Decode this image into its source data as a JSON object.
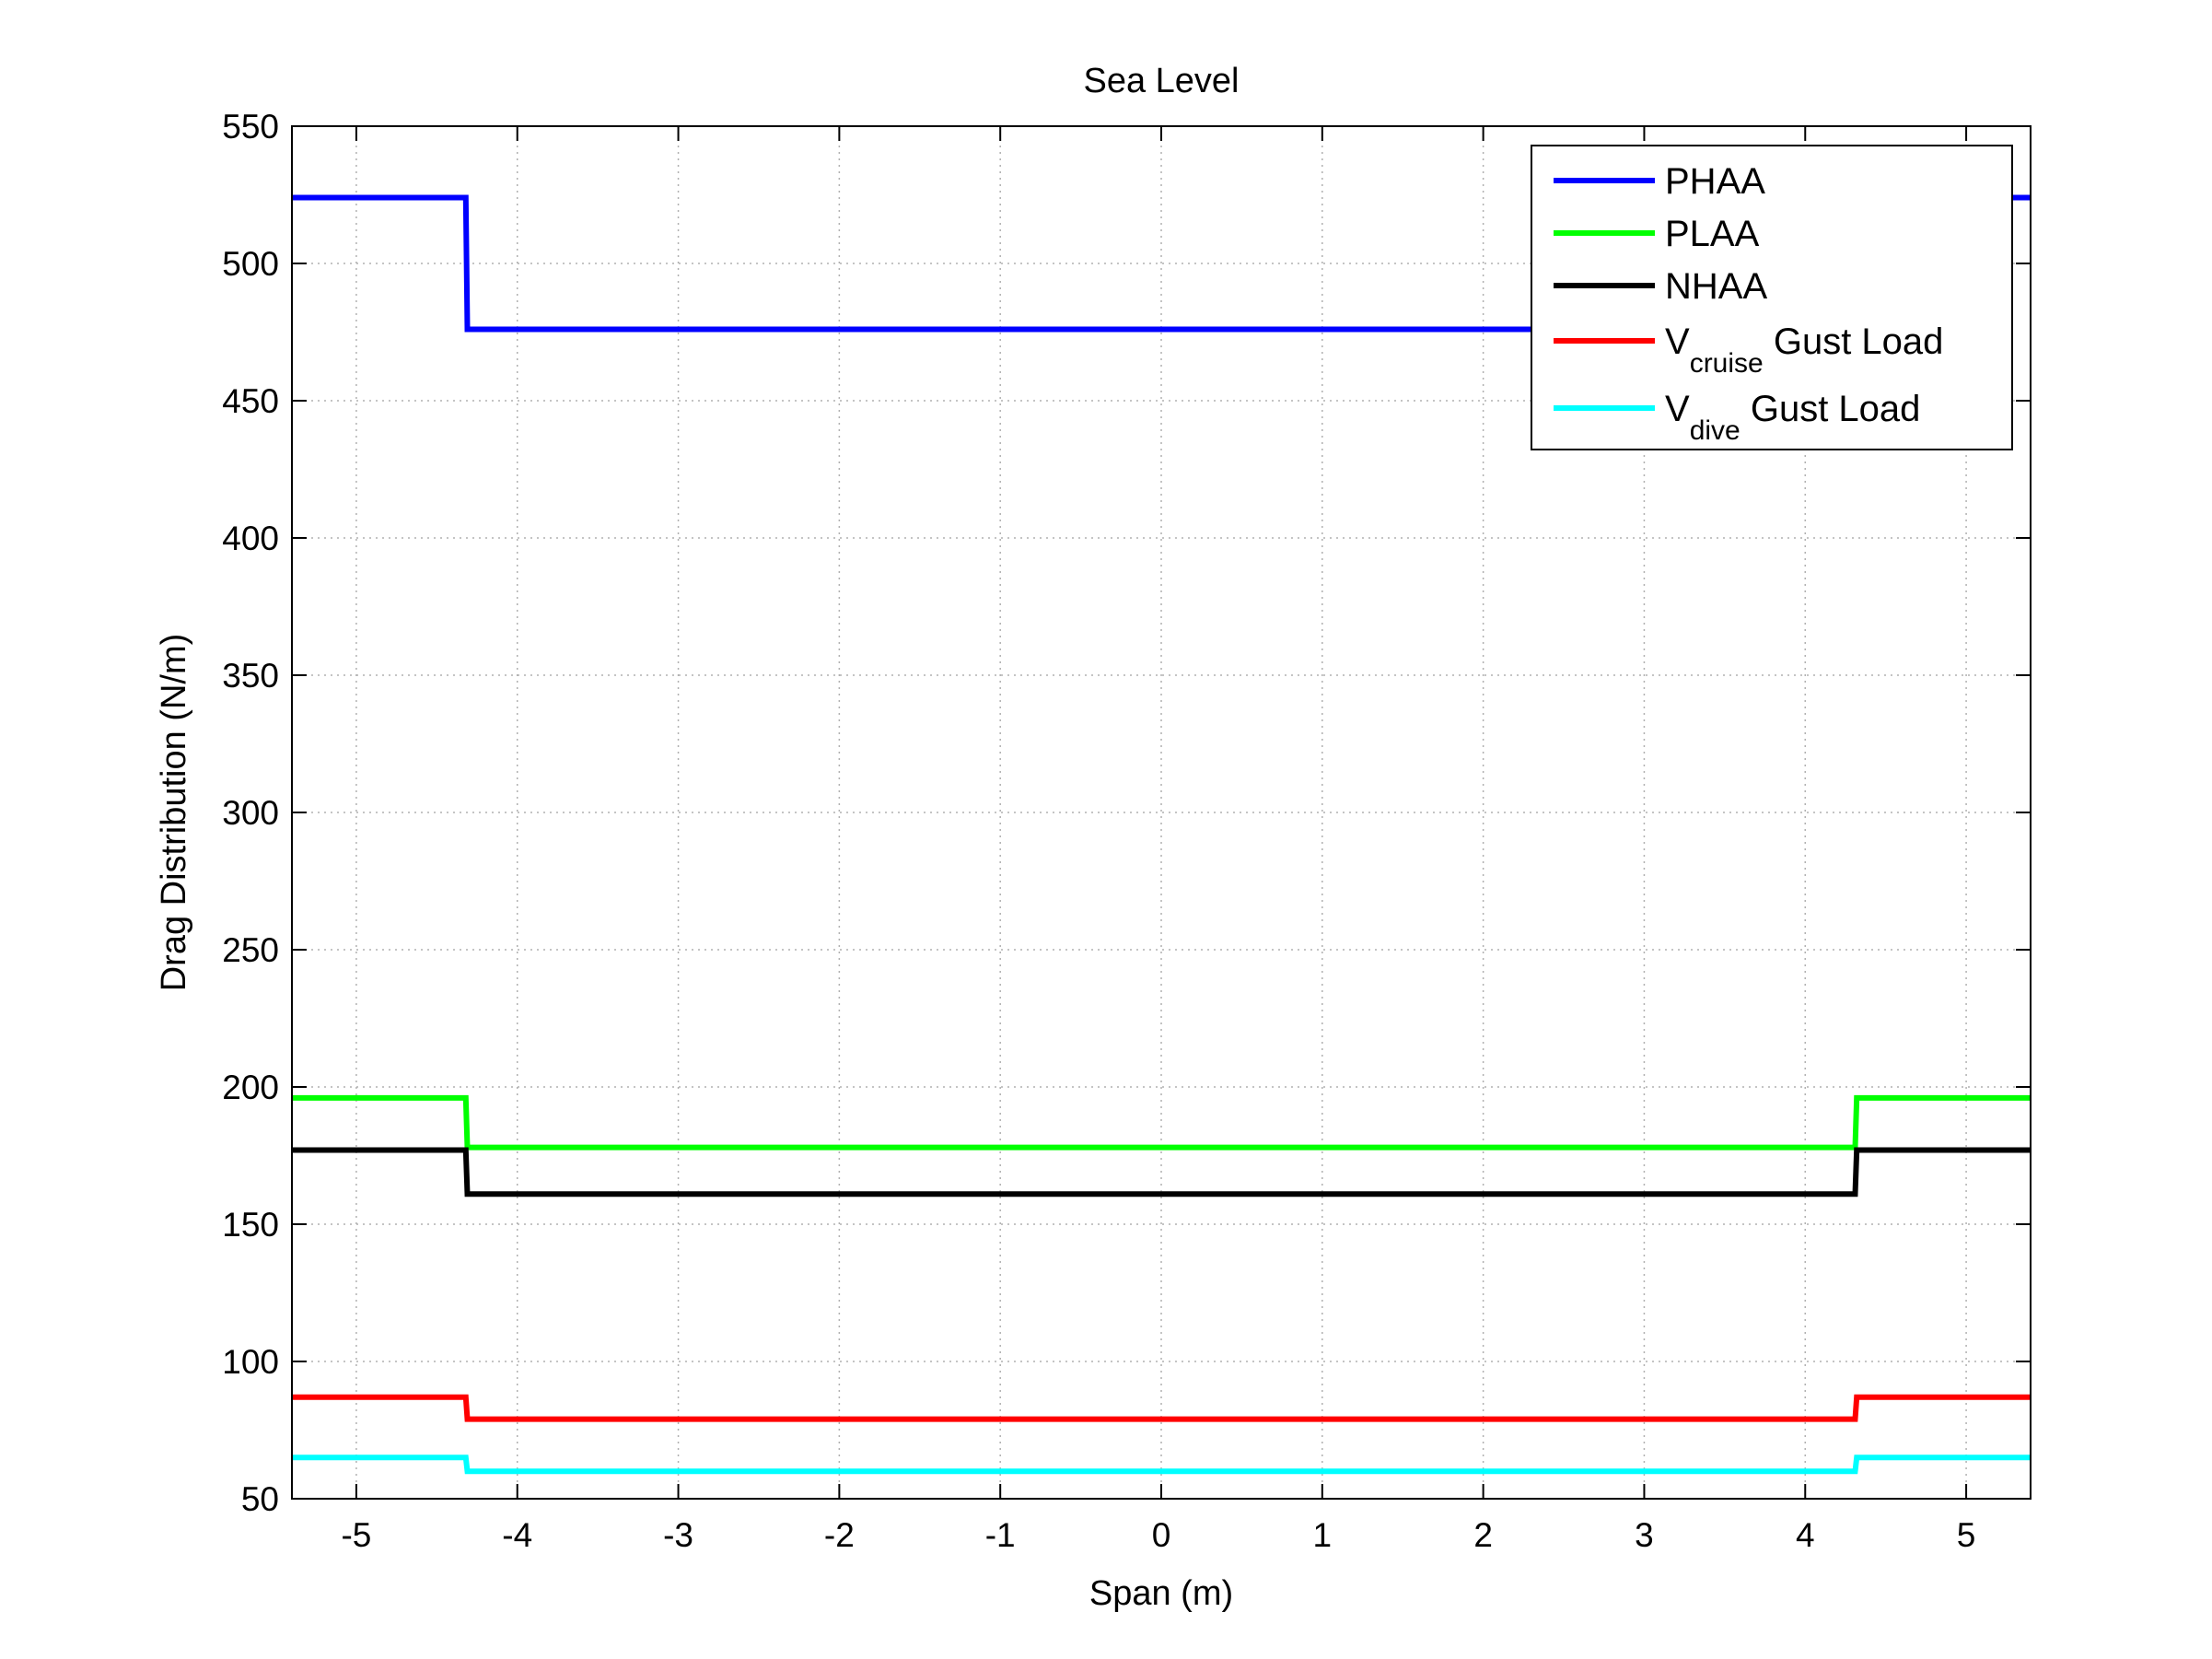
{
  "chart_data": {
    "type": "line",
    "title": "Sea Level",
    "xlabel": "Span (m)",
    "ylabel": "Drag Distribution (N/m)",
    "xlim": [
      -5.4,
      5.4
    ],
    "ylim": [
      50,
      550
    ],
    "xticks": [
      -5,
      -4,
      -3,
      -2,
      -1,
      0,
      1,
      2,
      3,
      4,
      5
    ],
    "yticks": [
      50,
      100,
      150,
      200,
      250,
      300,
      350,
      400,
      450,
      500,
      550
    ],
    "grid": true,
    "legend_position": "top-right",
    "series": [
      {
        "name": "PHAA",
        "legend": {
          "main": "PHAA",
          "sub": "",
          "tail": ""
        },
        "color": "#0000ff",
        "x": [
          -5.4,
          -4.32,
          -4.31,
          4.31,
          4.32,
          5.4
        ],
        "y": [
          524,
          524,
          476,
          476,
          524,
          524
        ]
      },
      {
        "name": "PLAA",
        "legend": {
          "main": "PLAA",
          "sub": "",
          "tail": ""
        },
        "color": "#00ff00",
        "x": [
          -5.4,
          -4.32,
          -4.31,
          4.31,
          4.32,
          5.4
        ],
        "y": [
          196,
          196,
          178,
          178,
          196,
          196
        ]
      },
      {
        "name": "NHAA",
        "legend": {
          "main": "NHAA",
          "sub": "",
          "tail": ""
        },
        "color": "#000000",
        "x": [
          -5.4,
          -4.32,
          -4.31,
          4.31,
          4.32,
          5.4
        ],
        "y": [
          177,
          177,
          161,
          161,
          177,
          177
        ]
      },
      {
        "name": "Vcruise Gust Load",
        "legend": {
          "main": "V",
          "sub": "cruise",
          "tail": " Gust Load"
        },
        "color": "#ff0000",
        "x": [
          -5.4,
          -4.32,
          -4.31,
          4.31,
          4.32,
          5.4
        ],
        "y": [
          87,
          87,
          79,
          79,
          87,
          87
        ]
      },
      {
        "name": "Vdive Gust Load",
        "legend": {
          "main": "V",
          "sub": "dive",
          "tail": " Gust Load"
        },
        "color": "#00ffff",
        "x": [
          -5.4,
          -4.32,
          -4.31,
          4.31,
          4.32,
          5.4
        ],
        "y": [
          65,
          65,
          60,
          60,
          65,
          65
        ]
      }
    ]
  }
}
